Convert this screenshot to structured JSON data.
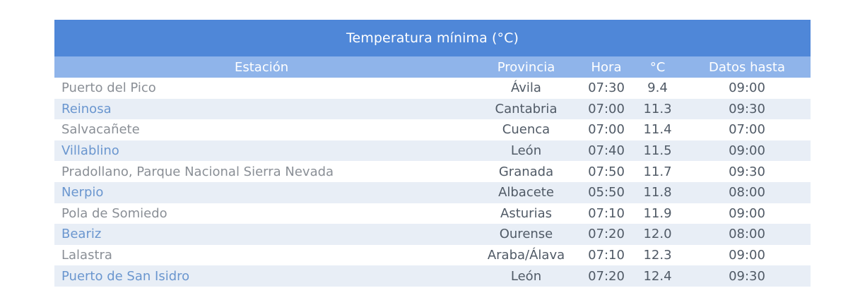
{
  "table": {
    "title": "Temperatura mínima (°C)",
    "headers": {
      "station": "Estación",
      "province": "Provincia",
      "hour": "Hora",
      "temp": "°C",
      "until": "Datos hasta"
    },
    "rows": [
      {
        "station": "Puerto del Pico",
        "province": "Ávila",
        "hour": "07:30",
        "temp": "9.4",
        "until": "09:00"
      },
      {
        "station": "Reinosa",
        "province": "Cantabria",
        "hour": "07:00",
        "temp": "11.3",
        "until": "09:30"
      },
      {
        "station": "Salvacañete",
        "province": "Cuenca",
        "hour": "07:00",
        "temp": "11.4",
        "until": "07:00"
      },
      {
        "station": "Villablino",
        "province": "León",
        "hour": "07:40",
        "temp": "11.5",
        "until": "09:00"
      },
      {
        "station": "Pradollano, Parque Nacional Sierra Nevada",
        "province": "Granada",
        "hour": "07:50",
        "temp": "11.7",
        "until": "09:30"
      },
      {
        "station": "Nerpio",
        "province": "Albacete",
        "hour": "05:50",
        "temp": "11.8",
        "until": "08:00"
      },
      {
        "station": "Pola de Somiedo",
        "province": "Asturias",
        "hour": "07:10",
        "temp": "11.9",
        "until": "09:00"
      },
      {
        "station": "Beariz",
        "province": "Ourense",
        "hour": "07:20",
        "temp": "12.0",
        "until": "08:00"
      },
      {
        "station": "Lalastra",
        "province": "Araba/Álava",
        "hour": "07:10",
        "temp": "12.3",
        "until": "09:00"
      },
      {
        "station": "Puerto de San Isidro",
        "province": "León",
        "hour": "07:20",
        "temp": "12.4",
        "until": "09:30"
      }
    ]
  },
  "colors": {
    "title_bar": "#4f87d8",
    "header_row": "#8fb4ea",
    "stripe": "#e8eef6",
    "station_link": "#6a96cf"
  }
}
